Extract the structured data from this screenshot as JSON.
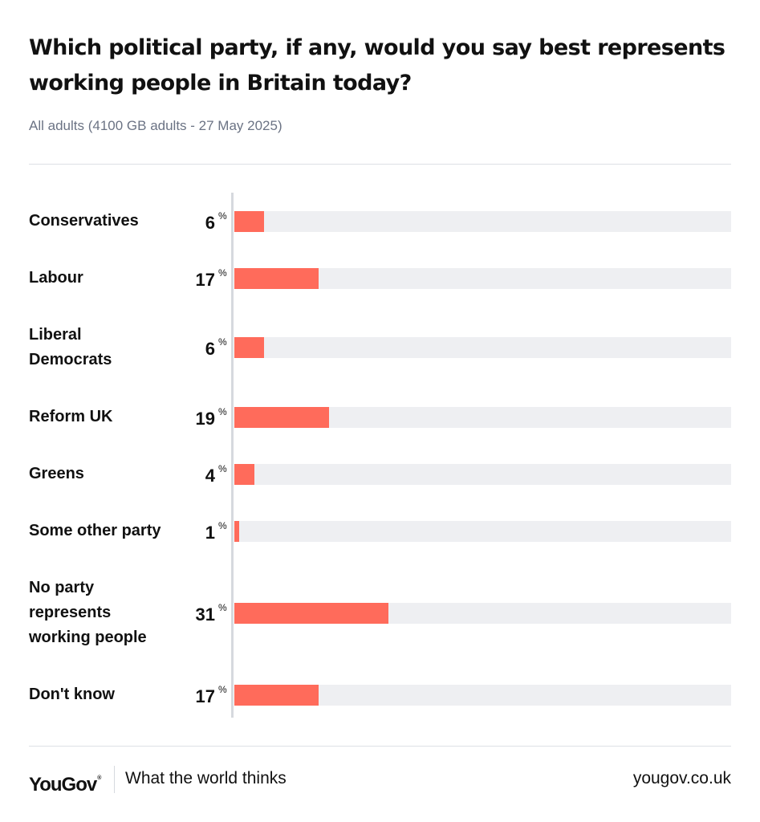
{
  "chart_data": {
    "type": "bar",
    "orientation": "horizontal",
    "title": "Which political party, if any, would you say best represents working people in Britain today?",
    "subtitle": "All adults (4100 GB adults - 27 May 2025)",
    "categories": [
      "Conservatives",
      "Labour",
      "Liberal\nDemocrats",
      "Reform UK",
      "Greens",
      "Some other party",
      "No party\nrepresents\nworking people",
      "Don't know"
    ],
    "values": [
      6,
      17,
      6,
      19,
      4,
      1,
      31,
      17
    ],
    "value_suffix": "%",
    "xlim": [
      0,
      100
    ],
    "grid": false,
    "legend": "none"
  },
  "colors": {
    "bar": "#ff6b5b",
    "track": "#eeeff2",
    "subtitle": "#6b7384"
  },
  "footer": {
    "logo": "YouGov",
    "logo_mark": "®",
    "tagline": "What the world thinks",
    "url": "yougov.co.uk"
  }
}
